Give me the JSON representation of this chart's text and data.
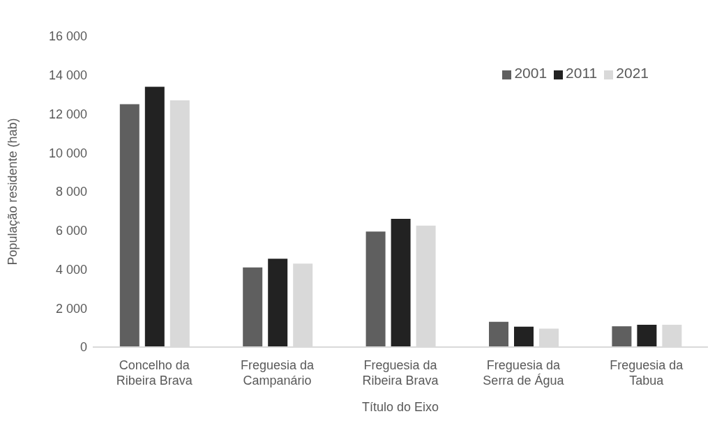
{
  "chart_data": {
    "type": "bar",
    "xlabel": "Título do Eixo",
    "ylabel": "População residente (hab)",
    "categories": [
      "Concelho da Ribeira Brava",
      "Freguesia da Campanário",
      "Freguesia da Ribeira Brava",
      "Freguesia da Serra de Água",
      "Freguesia da Tabua"
    ],
    "series": [
      {
        "name": "2001",
        "color": "#5f5f5f",
        "values": [
          12500,
          4100,
          5950,
          1300,
          1070
        ]
      },
      {
        "name": "2011",
        "color": "#222222",
        "values": [
          13400,
          4550,
          6600,
          1050,
          1150
        ]
      },
      {
        "name": "2021",
        "color": "#d9d9d9",
        "values": [
          12700,
          4300,
          6250,
          950,
          1150
        ]
      }
    ],
    "ylim": [
      0,
      16000
    ],
    "yticks": [
      {
        "value": 0,
        "label": "0"
      },
      {
        "value": 2000,
        "label": "2 000"
      },
      {
        "value": 4000,
        "label": "4 000"
      },
      {
        "value": 6000,
        "label": "6 000"
      },
      {
        "value": 8000,
        "label": "8 000"
      },
      {
        "value": 10000,
        "label": "10 000"
      },
      {
        "value": 12000,
        "label": "12 000"
      },
      {
        "value": 14000,
        "label": "14 000"
      },
      {
        "value": 16000,
        "label": "16 000"
      }
    ],
    "grid": false,
    "legend": "top right"
  }
}
